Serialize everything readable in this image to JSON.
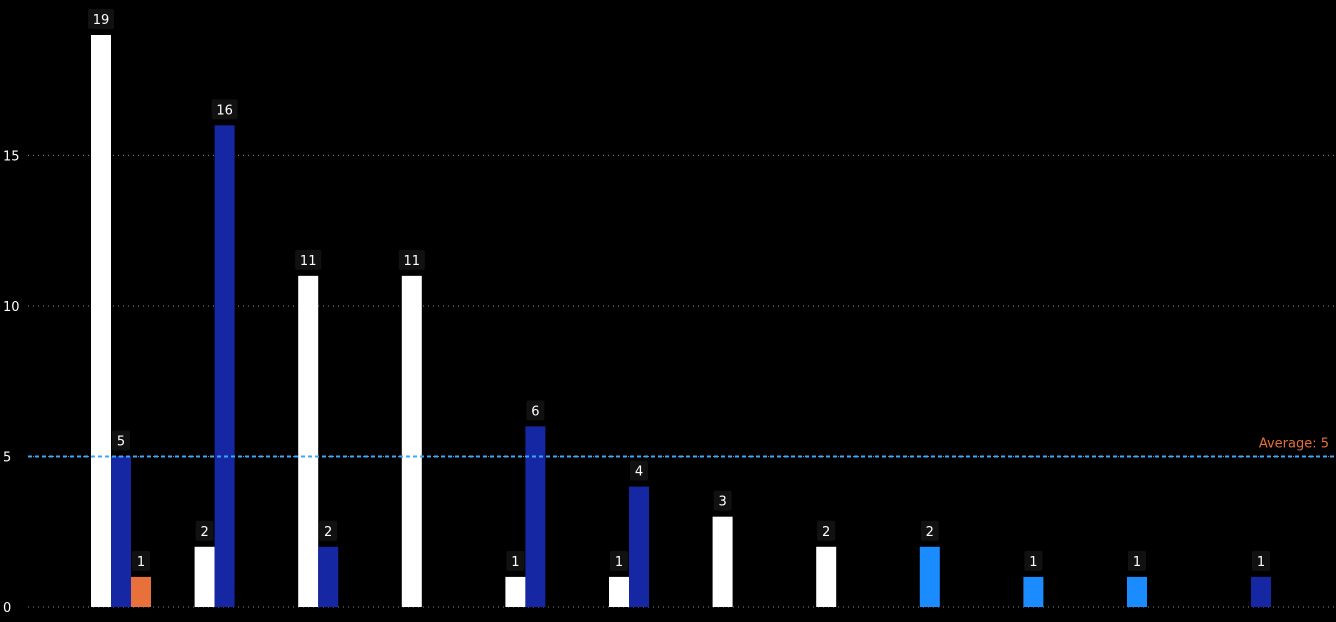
{
  "chart_data": {
    "type": "bar",
    "title": "",
    "xlabel": "",
    "ylabel": "",
    "ylim": [
      0,
      19
    ],
    "yticks": [
      0,
      5,
      10,
      15
    ],
    "grid": true,
    "legend": "none",
    "colors": {
      "white": "#ffffff",
      "dark_blue": "#1627a3",
      "orange": "#e8703a",
      "light_blue": "#1a8cff",
      "average_line": "#3da8f5",
      "average_label": "#e8703a",
      "background": "#000000"
    },
    "bars": [
      {
        "group": 0,
        "value": 19,
        "color": "white"
      },
      {
        "group": 0,
        "value": 5,
        "color": "dark_blue"
      },
      {
        "group": 0,
        "value": 1,
        "color": "orange"
      },
      {
        "group": 1,
        "value": 2,
        "color": "white"
      },
      {
        "group": 1,
        "value": 16,
        "color": "dark_blue"
      },
      {
        "group": 2,
        "value": 11,
        "color": "white"
      },
      {
        "group": 2,
        "value": 2,
        "color": "dark_blue"
      },
      {
        "group": 3,
        "value": 11,
        "color": "white"
      },
      {
        "group": 4,
        "value": 1,
        "color": "white"
      },
      {
        "group": 4,
        "value": 6,
        "color": "dark_blue"
      },
      {
        "group": 5,
        "value": 1,
        "color": "white"
      },
      {
        "group": 5,
        "value": 4,
        "color": "dark_blue"
      },
      {
        "group": 6,
        "value": 3,
        "color": "white"
      },
      {
        "group": 7,
        "value": 2,
        "color": "white"
      },
      {
        "group": 8,
        "value": 2,
        "color": "light_blue"
      },
      {
        "group": 9,
        "value": 1,
        "color": "light_blue"
      },
      {
        "group": 10,
        "value": 1,
        "color": "light_blue"
      },
      {
        "group": 11,
        "value": 1,
        "color": "dark_blue"
      }
    ],
    "average": {
      "value": 5,
      "label": "Average: 5"
    }
  }
}
